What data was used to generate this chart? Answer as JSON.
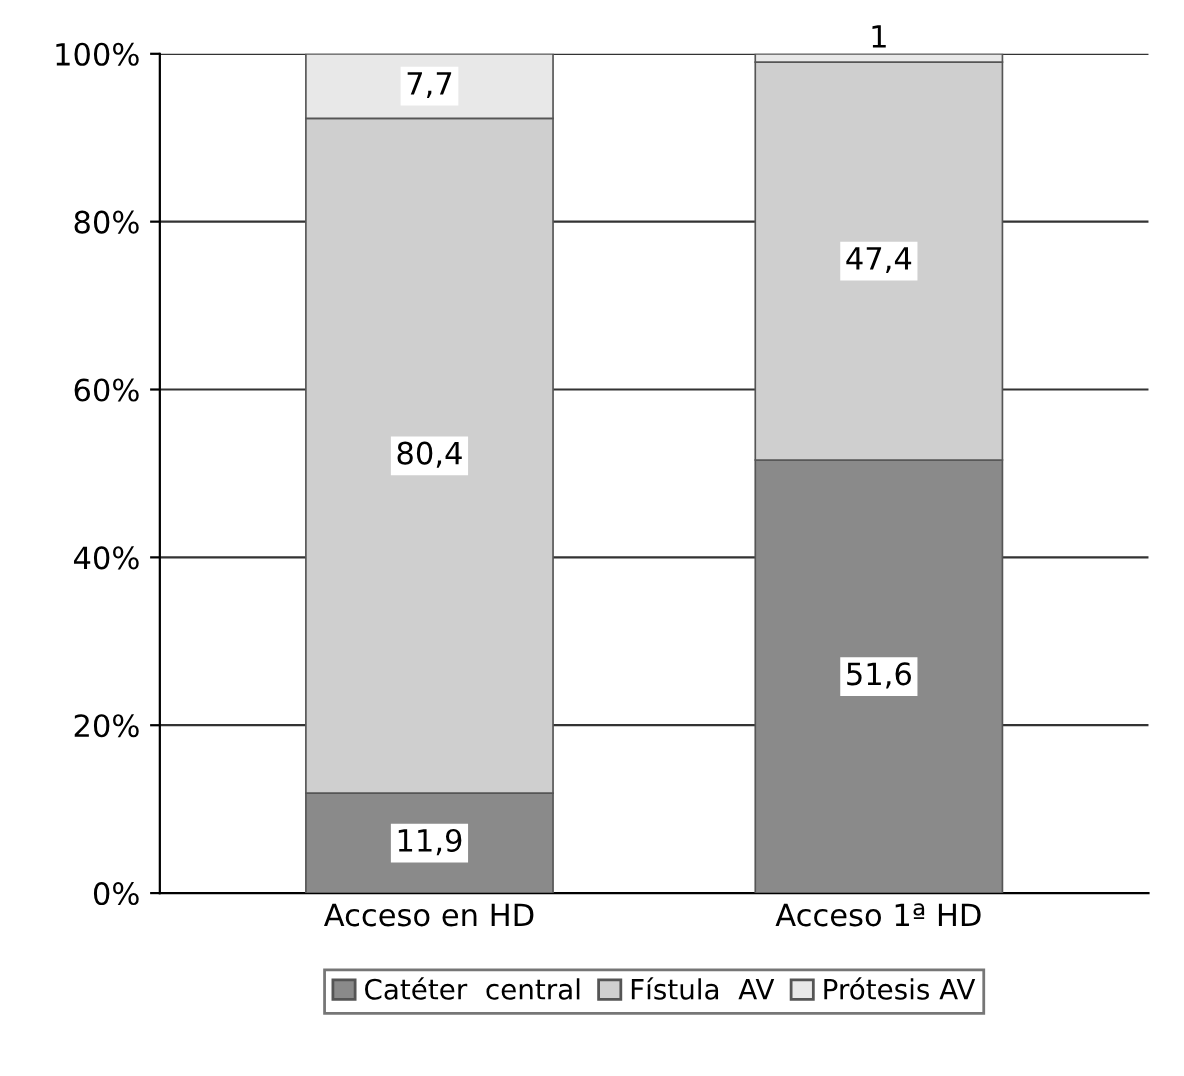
{
  "chart_data": {
    "type": "bar",
    "stacked": true,
    "categories": [
      "Acceso en HD",
      "Acceso 1ª HD"
    ],
    "series": [
      {
        "name": "Catéter  central",
        "color": "#8a8a8a",
        "values": [
          11.9,
          51.6
        ],
        "value_labels": [
          "11,9",
          "51,6"
        ]
      },
      {
        "name": "Fístula  AV",
        "color": "#cfcfcf",
        "values": [
          80.4,
          47.4
        ],
        "value_labels": [
          "80,4",
          "47,4"
        ]
      },
      {
        "name": "Prótesis AV",
        "color": "#e8e8e8",
        "values": [
          7.7,
          1
        ],
        "value_labels": [
          "7,7",
          "1"
        ]
      }
    ],
    "ylim": [
      0,
      100
    ],
    "yticks": [
      {
        "value": 0,
        "label": "0%"
      },
      {
        "value": 20,
        "label": "20%"
      },
      {
        "value": 40,
        "label": "40%"
      },
      {
        "value": 60,
        "label": "60%"
      },
      {
        "value": 80,
        "label": "80%"
      },
      {
        "value": 100,
        "label": "100%"
      }
    ],
    "grid": "y",
    "legend": "bottom"
  }
}
